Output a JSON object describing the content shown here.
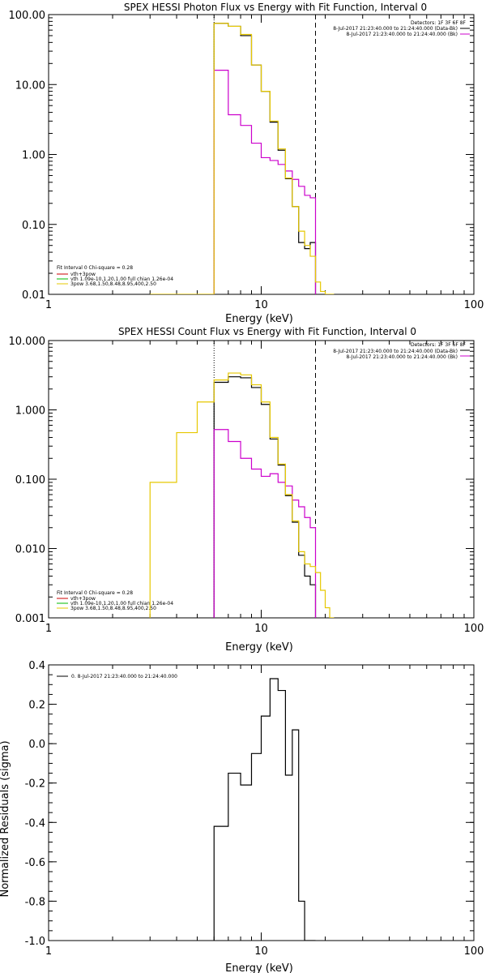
{
  "colors": {
    "axis": "#000000",
    "data_photon": "#000000",
    "model": "#e6c800",
    "background": "#cc00cc",
    "vth": "#00bb00",
    "fit": "#cc0000",
    "residual": "#000000"
  },
  "chart_data": [
    {
      "type": "line",
      "title": "SPEX HESSI Photon Flux vs Energy with Fit Function, Interval 0",
      "xlabel": "Energy (keV)",
      "ylabel": "",
      "xscale": "log",
      "yscale": "log",
      "xlim": [
        1,
        100
      ],
      "ylim": [
        0.01,
        100
      ],
      "xticks": [
        "1",
        "10",
        "100"
      ],
      "yticks": [
        "0.01",
        "0.10",
        "1.00",
        "10.00",
        "100.00"
      ],
      "legend_right": [
        "Detectors: 1F 3F 6F 8F",
        "8-Jul-2017 21:23:40.000 to 21:24:40.000 (Data-Bk)",
        "8-Jul-2017 21:23:40.000 to 21:24:40.000 (Bk)"
      ],
      "legend_left": [
        "Fit Interval 0   Chi-square = 0.28",
        "vth+3pow",
        "vth 1.09e-10,1.20,1.00  full chian 1.26e-04",
        "3pow 3.68,1.50,8.48,8.95,400,2.50"
      ],
      "vlines": [
        {
          "x": 6.0,
          "style": "dotted"
        },
        {
          "x": 18.0,
          "style": "dashed"
        }
      ],
      "series": [
        {
          "name": "Data-Bk",
          "edges": [
            6,
            7,
            8,
            9,
            10,
            11,
            12,
            13,
            14,
            15,
            16,
            17,
            18
          ],
          "values": [
            75,
            68,
            50,
            19,
            8.0,
            2.9,
            1.15,
            0.45,
            0.18,
            0.055,
            0.045,
            0.055
          ]
        },
        {
          "name": "Bk",
          "edges": [
            6,
            7,
            8,
            9,
            10,
            11,
            12,
            13,
            14,
            15,
            16,
            17,
            18
          ],
          "values": [
            16,
            3.7,
            2.6,
            1.45,
            0.9,
            0.82,
            0.72,
            0.58,
            0.44,
            0.35,
            0.26,
            0.24
          ]
        },
        {
          "name": "vth+3pow",
          "edges": [
            3,
            6,
            7,
            8,
            9,
            10,
            11,
            12,
            13,
            14,
            15,
            16,
            17,
            18,
            19,
            20,
            21,
            22
          ],
          "values": [
            2e-06,
            75,
            68,
            52,
            19,
            8.0,
            3.0,
            1.2,
            0.46,
            0.18,
            0.08,
            0.05,
            0.035,
            0.015,
            0.011,
            0.0085,
            0.001
          ]
        }
      ]
    },
    {
      "type": "line",
      "title": "SPEX HESSI Count Flux vs Energy with Fit Function, Interval 0",
      "xlabel": "Energy (keV)",
      "ylabel": "",
      "xscale": "log",
      "yscale": "log",
      "xlim": [
        1,
        100
      ],
      "ylim": [
        0.001,
        10
      ],
      "xticks": [
        "1",
        "10",
        "100"
      ],
      "yticks": [
        "0.001",
        "0.010",
        "0.100",
        "1.000",
        "10.000"
      ],
      "legend_right": [
        "Detectors: 1F 3F 6F 8F",
        "8-Jul-2017 21:23:40.000 to 21:24:40.000 (Data-Bk)",
        "8-Jul-2017 21:23:40.000 to 21:24:40.000 (Bk)"
      ],
      "legend_left": [
        "Fit Interval 0   Chi-square = 0.28",
        "vth+3pow",
        "vth 1.09e-10,1.20,1.00  full chian 1.26e-04",
        "3pow 3.68,1.50,8.48,8.95,400,2.50"
      ],
      "vlines": [
        {
          "x": 6.0,
          "style": "dotted"
        },
        {
          "x": 18.0,
          "style": "dashed"
        }
      ],
      "series": [
        {
          "name": "Data-Bk",
          "edges": [
            6,
            7,
            8,
            9,
            10,
            11,
            12,
            13,
            14,
            15,
            16,
            17,
            18
          ],
          "values": [
            2.5,
            3.0,
            2.9,
            2.1,
            1.2,
            0.38,
            0.16,
            0.058,
            0.024,
            0.008,
            0.004,
            0.003
          ]
        },
        {
          "name": "Bk",
          "edges": [
            6,
            7,
            8,
            9,
            10,
            11,
            12,
            13,
            14,
            15,
            16,
            17,
            18
          ],
          "values": [
            0.52,
            0.35,
            0.2,
            0.14,
            0.11,
            0.12,
            0.09,
            0.08,
            0.05,
            0.04,
            0.028,
            0.02
          ]
        },
        {
          "name": "vth+3pow",
          "edges": [
            3,
            4,
            5,
            6,
            7,
            8,
            9,
            10,
            11,
            12,
            13,
            14,
            15,
            16,
            17,
            18,
            19,
            20,
            21,
            22
          ],
          "values": [
            0.09,
            0.47,
            1.3,
            2.7,
            3.4,
            3.2,
            2.3,
            1.3,
            0.4,
            0.165,
            0.06,
            0.025,
            0.009,
            0.006,
            0.0055,
            0.0045,
            0.0025,
            0.0014,
            0.0005
          ]
        }
      ]
    },
    {
      "type": "line",
      "title": "",
      "xlabel": "Energy (keV)",
      "ylabel": "Normalized Residuals (sigma)",
      "xscale": "log",
      "yscale": "linear",
      "xlim": [
        1,
        100
      ],
      "ylim": [
        -1.0,
        0.4
      ],
      "xticks": [
        "1",
        "10",
        "100"
      ],
      "yticks": [
        "-1.0",
        "-0.8",
        "-0.6",
        "-0.4",
        "-0.2",
        "0.0",
        "0.2",
        "0.4"
      ],
      "legend_left": [
        "0.  8-Jul-2017 21:23:40.000 to 21:24:40.000"
      ],
      "series": [
        {
          "name": "0.",
          "edges": [
            6,
            7,
            8,
            9,
            10,
            11,
            12,
            13,
            14,
            15,
            16,
            17,
            18
          ],
          "values": [
            -0.42,
            -0.15,
            -0.21,
            -0.05,
            0.14,
            0.33,
            0.27,
            -0.16,
            0.07,
            -0.8,
            -1.0,
            -1.0
          ]
        }
      ]
    }
  ]
}
